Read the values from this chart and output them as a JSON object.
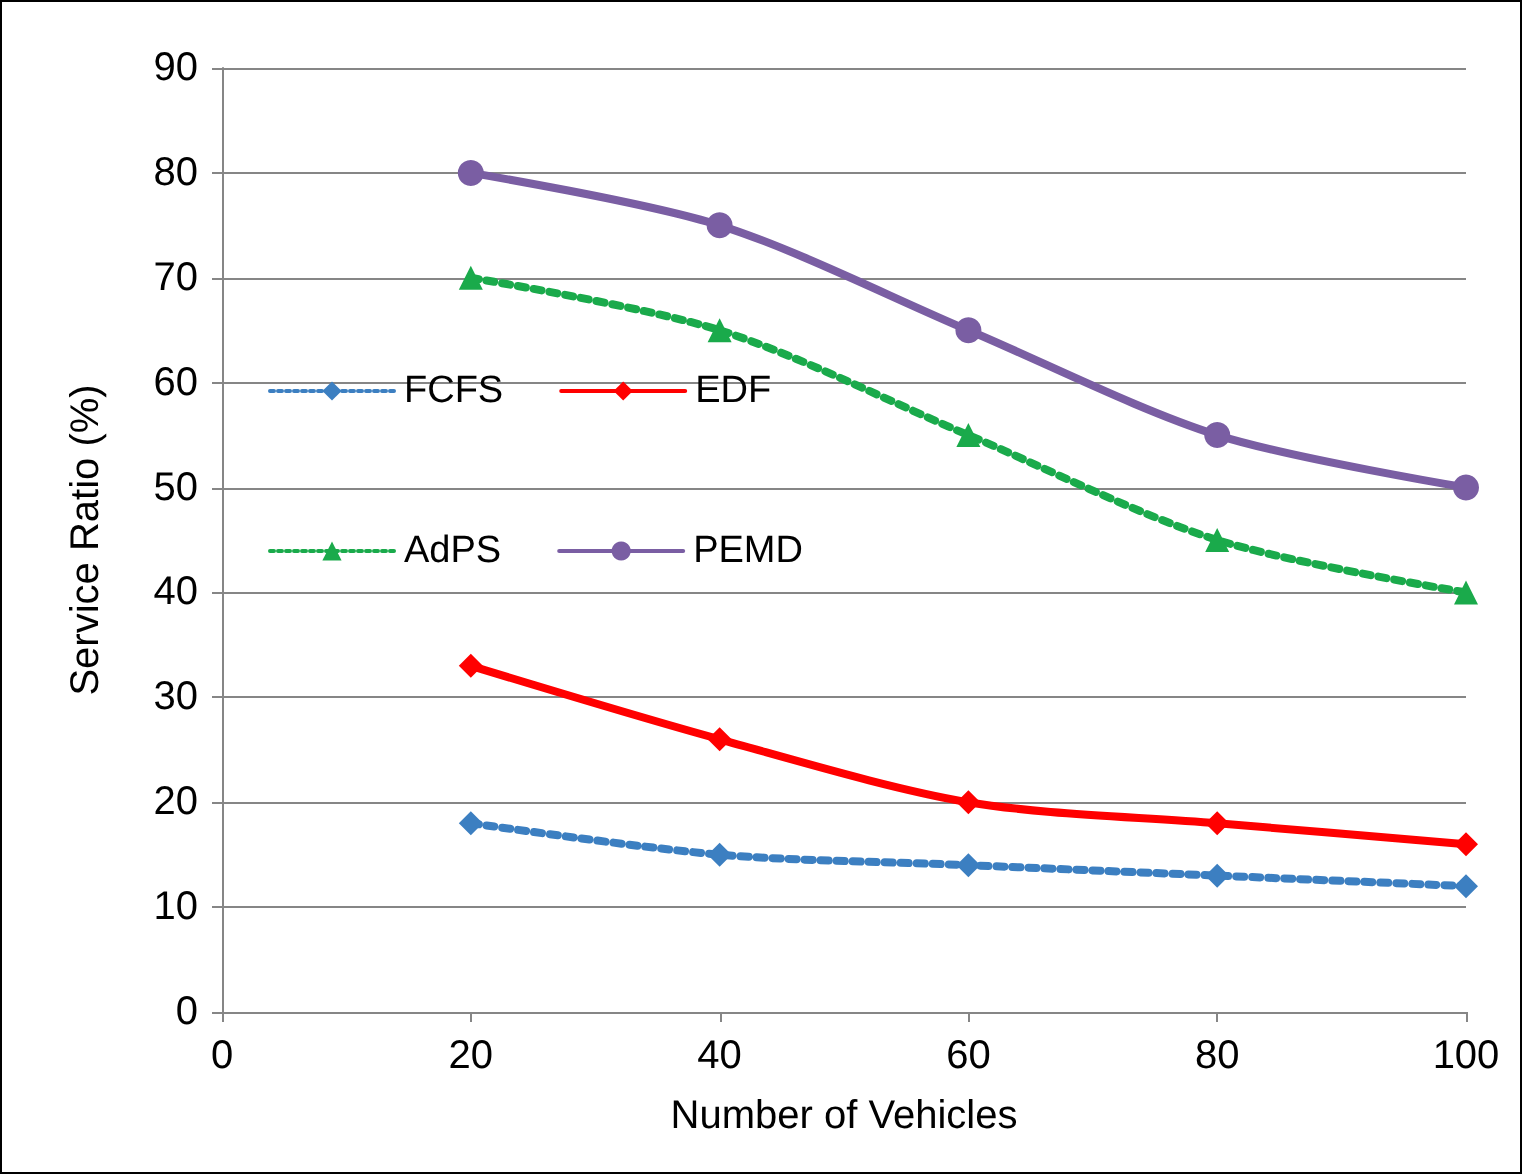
{
  "chart_data": {
    "type": "line",
    "xlabel": "Number of Vehicles",
    "ylabel": "Service Ratio (%)",
    "x": [
      20,
      40,
      60,
      80,
      100
    ],
    "xlim": [
      0,
      100
    ],
    "xticks": [
      0,
      20,
      40,
      60,
      80,
      100
    ],
    "ylim": [
      0,
      90
    ],
    "yticks": [
      0,
      10,
      20,
      30,
      40,
      50,
      60,
      70,
      80,
      90
    ],
    "grid": "y",
    "legend": "left",
    "series": [
      {
        "name": "FCFS",
        "color": "#3c7fc1",
        "values": [
          18,
          15,
          14,
          13,
          12
        ],
        "marker": "diamond",
        "line_style": "dotted"
      },
      {
        "name": "EDF",
        "color": "#ff0000",
        "values": [
          33,
          26,
          20,
          18,
          16
        ],
        "marker": "diamond",
        "line_style": "solid"
      },
      {
        "name": "AdPS",
        "color": "#1aaa4b",
        "values": [
          70,
          65,
          55,
          45,
          40
        ],
        "marker": "triangle",
        "line_style": "dotted"
      },
      {
        "name": "PEMD",
        "color": "#7a5ea3",
        "values": [
          80,
          75,
          65,
          55,
          50
        ],
        "marker": "circle",
        "line_style": "solid"
      }
    ]
  }
}
